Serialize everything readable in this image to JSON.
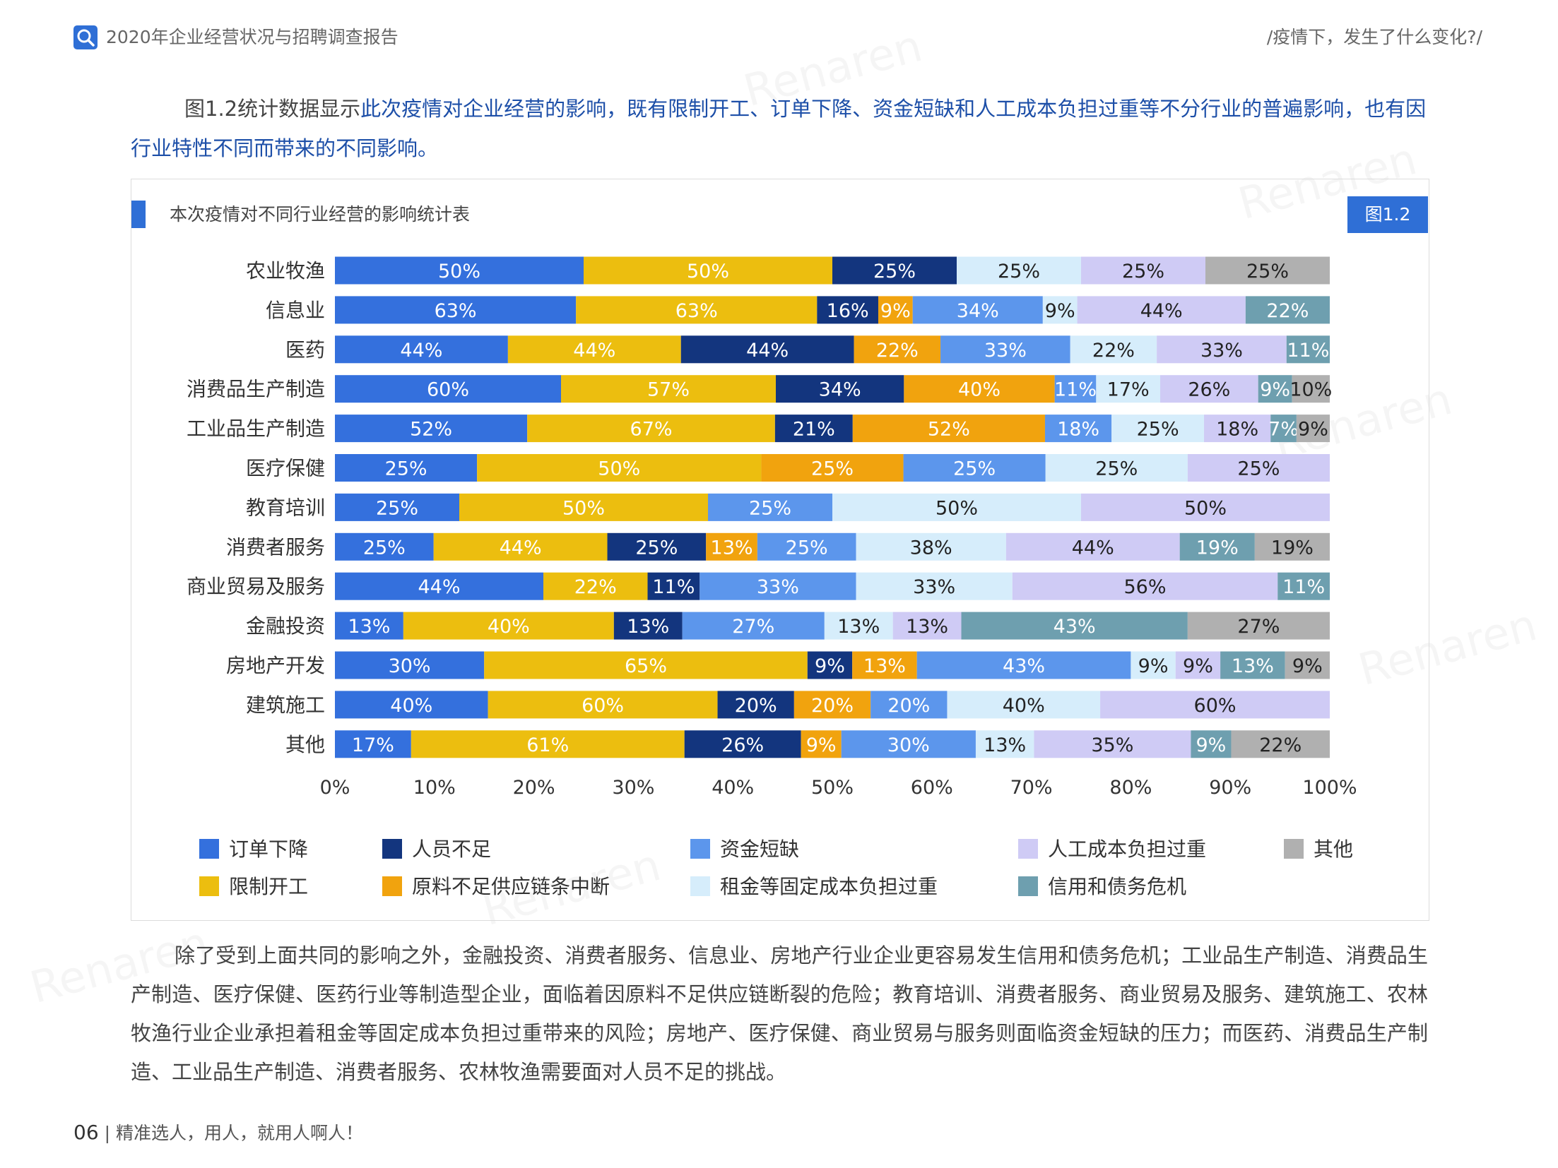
{
  "header": {
    "title": "2020年企业经营状况与招聘调查报告",
    "right": "/疫情下，发生了什么变化?/"
  },
  "intro": {
    "prefix": "图1.2统计数据显示",
    "highlight": "此次疫情对企业经营的影响，既有限制开工、订单下降、资金短缺和人工成本负担过重等不分行业的普遍影响，也有因行业特性不同而带来的不同影响。"
  },
  "chart_title": "本次疫情对不同行业经营的影响统计表",
  "figure_badge": "图1.2",
  "chart_data": {
    "type": "bar",
    "orientation": "horizontal",
    "stacked": true,
    "normalized": true,
    "categories": [
      "农业牧渔",
      "信息业",
      "医药",
      "消费品生产制造",
      "工业品生产制造",
      "医疗保健",
      "教育培训",
      "消费者服务",
      "商业贸易及服务",
      "金融投资",
      "房地产开发",
      "建筑施工",
      "其他"
    ],
    "series": [
      {
        "name": "订单下降",
        "color": "#3470dd",
        "values": [
          50,
          63,
          44,
          60,
          52,
          25,
          25,
          25,
          44,
          13,
          30,
          40,
          17
        ]
      },
      {
        "name": "限制开工",
        "color": "#ecbe0f",
        "values": [
          50,
          63,
          44,
          57,
          67,
          50,
          50,
          44,
          22,
          40,
          65,
          60,
          61
        ]
      },
      {
        "name": "人员不足",
        "color": "#13357e",
        "values": [
          25,
          16,
          44,
          34,
          21,
          0,
          0,
          25,
          11,
          13,
          9,
          20,
          26
        ]
      },
      {
        "name": "原料不足供应链条中断",
        "color": "#f1a30e",
        "values": [
          0,
          9,
          22,
          40,
          52,
          25,
          0,
          13,
          0,
          0,
          13,
          20,
          9
        ]
      },
      {
        "name": "资金短缺",
        "color": "#5c96ec",
        "values": [
          0,
          34,
          33,
          11,
          18,
          25,
          25,
          25,
          33,
          27,
          43,
          20,
          30
        ]
      },
      {
        "name": "租金等固定成本负担过重",
        "color": "#d6edfb",
        "values": [
          25,
          9,
          22,
          17,
          25,
          25,
          50,
          38,
          33,
          13,
          9,
          40,
          13
        ]
      },
      {
        "name": "人工成本负担过重",
        "color": "#cfcbf5",
        "values": [
          25,
          44,
          33,
          26,
          18,
          25,
          50,
          44,
          56,
          13,
          9,
          60,
          35
        ]
      },
      {
        "name": "信用和债务危机",
        "color": "#6e9faf",
        "values": [
          0,
          22,
          11,
          9,
          7,
          0,
          0,
          19,
          11,
          43,
          13,
          0,
          9
        ]
      },
      {
        "name": "其他",
        "color": "#b0b0b0",
        "values": [
          25,
          0,
          0,
          10,
          9,
          0,
          0,
          19,
          0,
          27,
          9,
          0,
          22
        ]
      }
    ],
    "xlim": [
      0,
      100
    ],
    "xticks": [
      "0%",
      "10%",
      "20%",
      "30%",
      "40%",
      "50%",
      "60%",
      "70%",
      "80%",
      "90%",
      "100%"
    ],
    "legend_position": "bottom",
    "legend_order": [
      "订单下降",
      "人员不足",
      "资金短缺",
      "人工成本负担过重",
      "其他",
      "限制开工",
      "原料不足供应链条中断",
      "租金等固定成本负担过重",
      "信用和债务危机"
    ]
  },
  "conclusion": "除了受到上面共同的影响之外，金融投资、消费者服务、信息业、房地产行业企业更容易发生信用和债务危机；工业品生产制造、消费品生产制造、医疗保健、医药行业等制造型企业，面临着因原料不足供应链断裂的危险；教育培训、消费者服务、商业贸易及服务、建筑施工、农林牧渔行业企业承担着租金等固定成本负担过重带来的风险；房地产、医疗保健、商业贸易与服务则面临资金短缺的压力；而医药、消费品生产制造、工业品生产制造、消费者服务、农林牧渔需要面对人员不足的挑战。",
  "footer": {
    "page": "06",
    "slogan": "精准选人，用人，就用人啊人！"
  },
  "watermark": "Renaren",
  "colors": {
    "accent": "#2f6fd6",
    "highlight_text": "#1d4fa8"
  }
}
